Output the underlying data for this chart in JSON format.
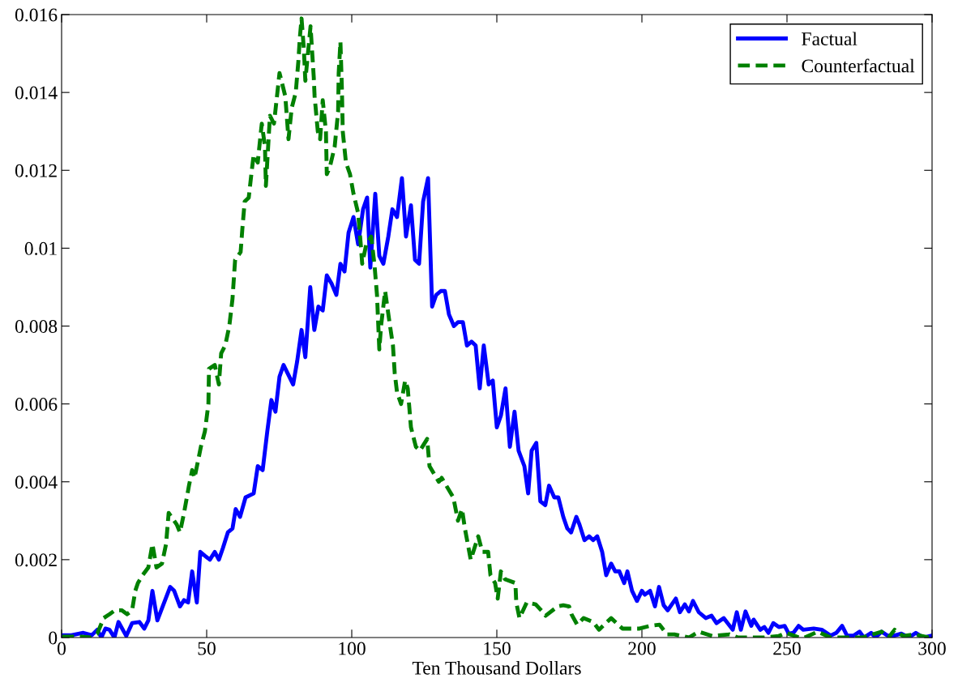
{
  "chart_data": {
    "type": "line",
    "xlabel": "Ten Thousand Dollars",
    "xlim": [
      0,
      300
    ],
    "xticks": [
      0,
      50,
      100,
      150,
      200,
      250,
      300
    ],
    "ylim": [
      0,
      0.016
    ],
    "yticks": [
      0,
      0.002,
      0.004,
      0.006,
      0.008,
      0.01,
      0.012,
      0.014,
      0.016
    ],
    "grid": false,
    "legend": "top right",
    "series": [
      {
        "name": "Factual",
        "color": "#0000ff",
        "line_style": "solid",
        "x": [
          0.2,
          3.4,
          7.5,
          10.4,
          12.3,
          13.7,
          15.1,
          16.5,
          18.2,
          19.6,
          22.3,
          24.3,
          26.8,
          28.5,
          29.9,
          31.3,
          33,
          37.4,
          38.8,
          40.8,
          42.2,
          43.6,
          45,
          46.6,
          47.8,
          49.4,
          51.1,
          52.8,
          54.2,
          55.6,
          57.3,
          58.9,
          60,
          61.5,
          63.4,
          66.2,
          67.6,
          69.3,
          70.9,
          72.3,
          73.7,
          75.1,
          76.5,
          79.8,
          81.2,
          82.7,
          84,
          85.7,
          87.1,
          88.5,
          90,
          91.4,
          93,
          94.7,
          96.1,
          97.5,
          98.9,
          100.6,
          102.2,
          103.9,
          105.3,
          106.4,
          108.1,
          109.5,
          110.9,
          112.6,
          114,
          115.6,
          117.3,
          118.7,
          120.4,
          121.8,
          123.2,
          124.6,
          126.3,
          127.7,
          129.1,
          130.7,
          132.1,
          133.5,
          135.2,
          136.6,
          138.3,
          139.7,
          141.3,
          142.7,
          144.1,
          145.5,
          147.2,
          148.6,
          150,
          151.4,
          153,
          154.5,
          156.1,
          157.5,
          159.5,
          160.8,
          162,
          163.6,
          165,
          166.7,
          168,
          169.8,
          171.2,
          172.9,
          174.3,
          175.6,
          177.4,
          178.5,
          180.2,
          181.8,
          183.2,
          184.6,
          186.3,
          187.7,
          189.4,
          190.8,
          192.2,
          193.9,
          195,
          196.6,
          198.3,
          200,
          201,
          202.8,
          204.5,
          205.9,
          207.5,
          208.9,
          211.7,
          213.1,
          214.8,
          216.2,
          217.6,
          219.6,
          222,
          224,
          225.7,
          228.2,
          231.3,
          232.7,
          234.1,
          235.7,
          237.7,
          238.5,
          240.8,
          242.2,
          243.6,
          245.3,
          247.2,
          249.2,
          250.6,
          252.2,
          254,
          255.6,
          259.2,
          262,
          265,
          267,
          269,
          270.7,
          273,
          275,
          276.5,
          279,
          280.5,
          282.6,
          284.6,
          287,
          289.4,
          292,
          294.4,
          297,
          300
        ],
        "values": [
          6e-05,
          6e-05,
          0.00012,
          6e-05,
          0.0002,
          0,
          0.00023,
          0.0002,
          0,
          0.0004,
          4e-05,
          0.00037,
          0.0004,
          0.00023,
          0.00044,
          0.0012,
          0.00044,
          0.0013,
          0.0012,
          0.0008,
          0.00096,
          0.0009,
          0.0017,
          0.0009,
          0.0022,
          0.0021,
          0.002,
          0.0022,
          0.002,
          0.0023,
          0.0027,
          0.0028,
          0.0033,
          0.0031,
          0.0036,
          0.0037,
          0.0044,
          0.0043,
          0.0053,
          0.0061,
          0.0058,
          0.0067,
          0.007,
          0.0065,
          0.0071,
          0.0079,
          0.0072,
          0.009,
          0.0079,
          0.0085,
          0.0084,
          0.0093,
          0.0091,
          0.0088,
          0.0096,
          0.0094,
          0.0104,
          0.0108,
          0.0101,
          0.011,
          0.0113,
          0.0095,
          0.0114,
          0.0098,
          0.0096,
          0.0103,
          0.011,
          0.0108,
          0.0118,
          0.0103,
          0.0111,
          0.0097,
          0.0096,
          0.0112,
          0.0118,
          0.0085,
          0.0088,
          0.0089,
          0.0089,
          0.0083,
          0.008,
          0.0081,
          0.0081,
          0.0075,
          0.0076,
          0.0075,
          0.0064,
          0.0075,
          0.0065,
          0.0066,
          0.0054,
          0.0057,
          0.0064,
          0.0049,
          0.0058,
          0.0048,
          0.0044,
          0.0037,
          0.0048,
          0.005,
          0.0035,
          0.0034,
          0.0039,
          0.0036,
          0.0036,
          0.0031,
          0.0028,
          0.0027,
          0.0031,
          0.0029,
          0.0025,
          0.0026,
          0.0025,
          0.0026,
          0.0022,
          0.0016,
          0.0019,
          0.0017,
          0.0017,
          0.0014,
          0.0017,
          0.0012,
          0.00094,
          0.0012,
          0.0011,
          0.0012,
          0.0008,
          0.0013,
          0.00083,
          0.0007,
          0.001,
          0.00065,
          0.00085,
          0.00067,
          0.00094,
          0.00065,
          0.0005,
          0.00056,
          0.00037,
          0.0005,
          0.0002,
          0.00065,
          0.0002,
          0.00067,
          0.0003,
          0.00046,
          0.0002,
          0.00027,
          0.00012,
          0.00037,
          0.00027,
          0.0003,
          0.0001,
          0.00012,
          0.0003,
          0.0002,
          0.00023,
          0.0002,
          5e-05,
          0.00012,
          0.0003,
          5e-05,
          5e-05,
          0.00015,
          0,
          0.00012,
          0,
          0.00015,
          5e-05,
          5e-05,
          0.0001,
          0,
          0.00012,
          0,
          5e-05
        ]
      },
      {
        "name": "Counterfactual",
        "color": "#008000",
        "line_style": "dashed",
        "x": [
          0.2,
          3.9,
          6.7,
          10,
          12.3,
          14.5,
          16.5,
          18.4,
          20.7,
          22.6,
          24.3,
          25.4,
          26.3,
          27.9,
          29.9,
          31.3,
          32.7,
          34.6,
          36,
          36.9,
          39.7,
          40.8,
          42.2,
          43.9,
          45,
          45.8,
          47.2,
          48,
          49.4,
          50.6,
          50.8,
          52.8,
          54.2,
          55,
          56.4,
          57.8,
          58.9,
          59.8,
          61.7,
          62.3,
          63.1,
          64.5,
          65.4,
          66.2,
          67.6,
          68.7,
          69,
          70.1,
          70.4,
          71.8,
          73.2,
          75.1,
          77.1,
          78.2,
          79.3,
          80.7,
          81.6,
          82.1,
          82.7,
          83.5,
          84,
          84.9,
          85.8,
          86.3,
          86.9,
          87.2,
          88.3,
          89.1,
          90,
          91.1,
          91.4,
          92.5,
          94.1,
          95.3,
          95.5,
          96.1,
          96.6,
          96.9,
          98,
          99.4,
          100.6,
          102.2,
          103.1,
          103.6,
          105,
          106.7,
          107.8,
          108.7,
          109.5,
          110.1,
          111.5,
          113,
          114.2,
          114.8,
          115.6,
          117,
          118.4,
          119.3,
          120.4,
          122.1,
          123.5,
          126,
          126.8,
          130,
          131,
          135,
          136.6,
          138,
          139,
          141,
          143.6,
          145,
          147,
          147.8,
          149.4,
          150.3,
          151.4,
          152.8,
          156.4,
          156.7,
          157.8,
          160.3,
          163.4,
          165.9,
          166.8,
          171,
          172.9,
          174.9,
          175.7,
          177.7,
          179.9,
          183.2,
          185.2,
          189.4,
          193.3,
          196.4,
          199.2,
          202.8,
          206.1,
          208.7,
          211.2,
          216.2,
          219.6,
          224.3,
          230.2,
          233.2,
          238.3,
          242.2,
          247.2,
          249.7,
          254.2,
          256.1,
          260.6,
          265,
          269,
          273,
          276,
          282.6,
          285,
          287.1,
          290,
          294,
          299
        ],
        "values": [
          2e-05,
          2e-05,
          2e-05,
          0,
          0.0001,
          0.0005,
          0.0006,
          0.0007,
          0.0007,
          0.0006,
          0.0007,
          0.0012,
          0.0014,
          0.0016,
          0.0018,
          0.0024,
          0.0018,
          0.0019,
          0.0024,
          0.0032,
          0.0029,
          0.0027,
          0.0032,
          0.0039,
          0.0043,
          0.0041,
          0.0046,
          0.0049,
          0.0053,
          0.006,
          0.0069,
          0.007,
          0.0065,
          0.0073,
          0.0075,
          0.008,
          0.0087,
          0.0097,
          0.0099,
          0.0105,
          0.0112,
          0.0113,
          0.0119,
          0.0124,
          0.0122,
          0.013,
          0.0132,
          0.0126,
          0.0116,
          0.0134,
          0.0132,
          0.0145,
          0.0139,
          0.0128,
          0.0136,
          0.014,
          0.0148,
          0.0154,
          0.0159,
          0.0151,
          0.0143,
          0.015,
          0.0157,
          0.0151,
          0.0144,
          0.0139,
          0.013,
          0.0128,
          0.0138,
          0.013,
          0.0119,
          0.0121,
          0.0126,
          0.0135,
          0.0145,
          0.0153,
          0.0141,
          0.013,
          0.0122,
          0.0119,
          0.0114,
          0.0109,
          0.0101,
          0.0096,
          0.0101,
          0.0103,
          0.0096,
          0.0088,
          0.0074,
          0.008,
          0.0089,
          0.0081,
          0.0075,
          0.0068,
          0.0063,
          0.006,
          0.0066,
          0.0064,
          0.0054,
          0.0049,
          0.0048,
          0.0051,
          0.0044,
          0.004,
          0.0041,
          0.0036,
          0.003,
          0.0033,
          0.0028,
          0.002,
          0.0026,
          0.0022,
          0.0022,
          0.0016,
          0.0014,
          0.001,
          0.0017,
          0.0015,
          0.0014,
          0.0009,
          0.0005,
          0.0009,
          0.00085,
          0.00065,
          0.00056,
          0.0008,
          0.00083,
          0.0008,
          0.0006,
          0.00033,
          0.0005,
          0.0004,
          0.0002,
          0.0005,
          0.00023,
          0.00023,
          0.00023,
          0.0003,
          0.00033,
          8e-05,
          8e-05,
          0,
          0.00015,
          4e-05,
          8e-05,
          0,
          0,
          0,
          4e-05,
          0.00012,
          0,
          0,
          0.00015,
          0,
          0,
          0,
          0,
          0.00015,
          0,
          0.0002,
          4e-05,
          8e-05,
          0
        ]
      }
    ]
  }
}
